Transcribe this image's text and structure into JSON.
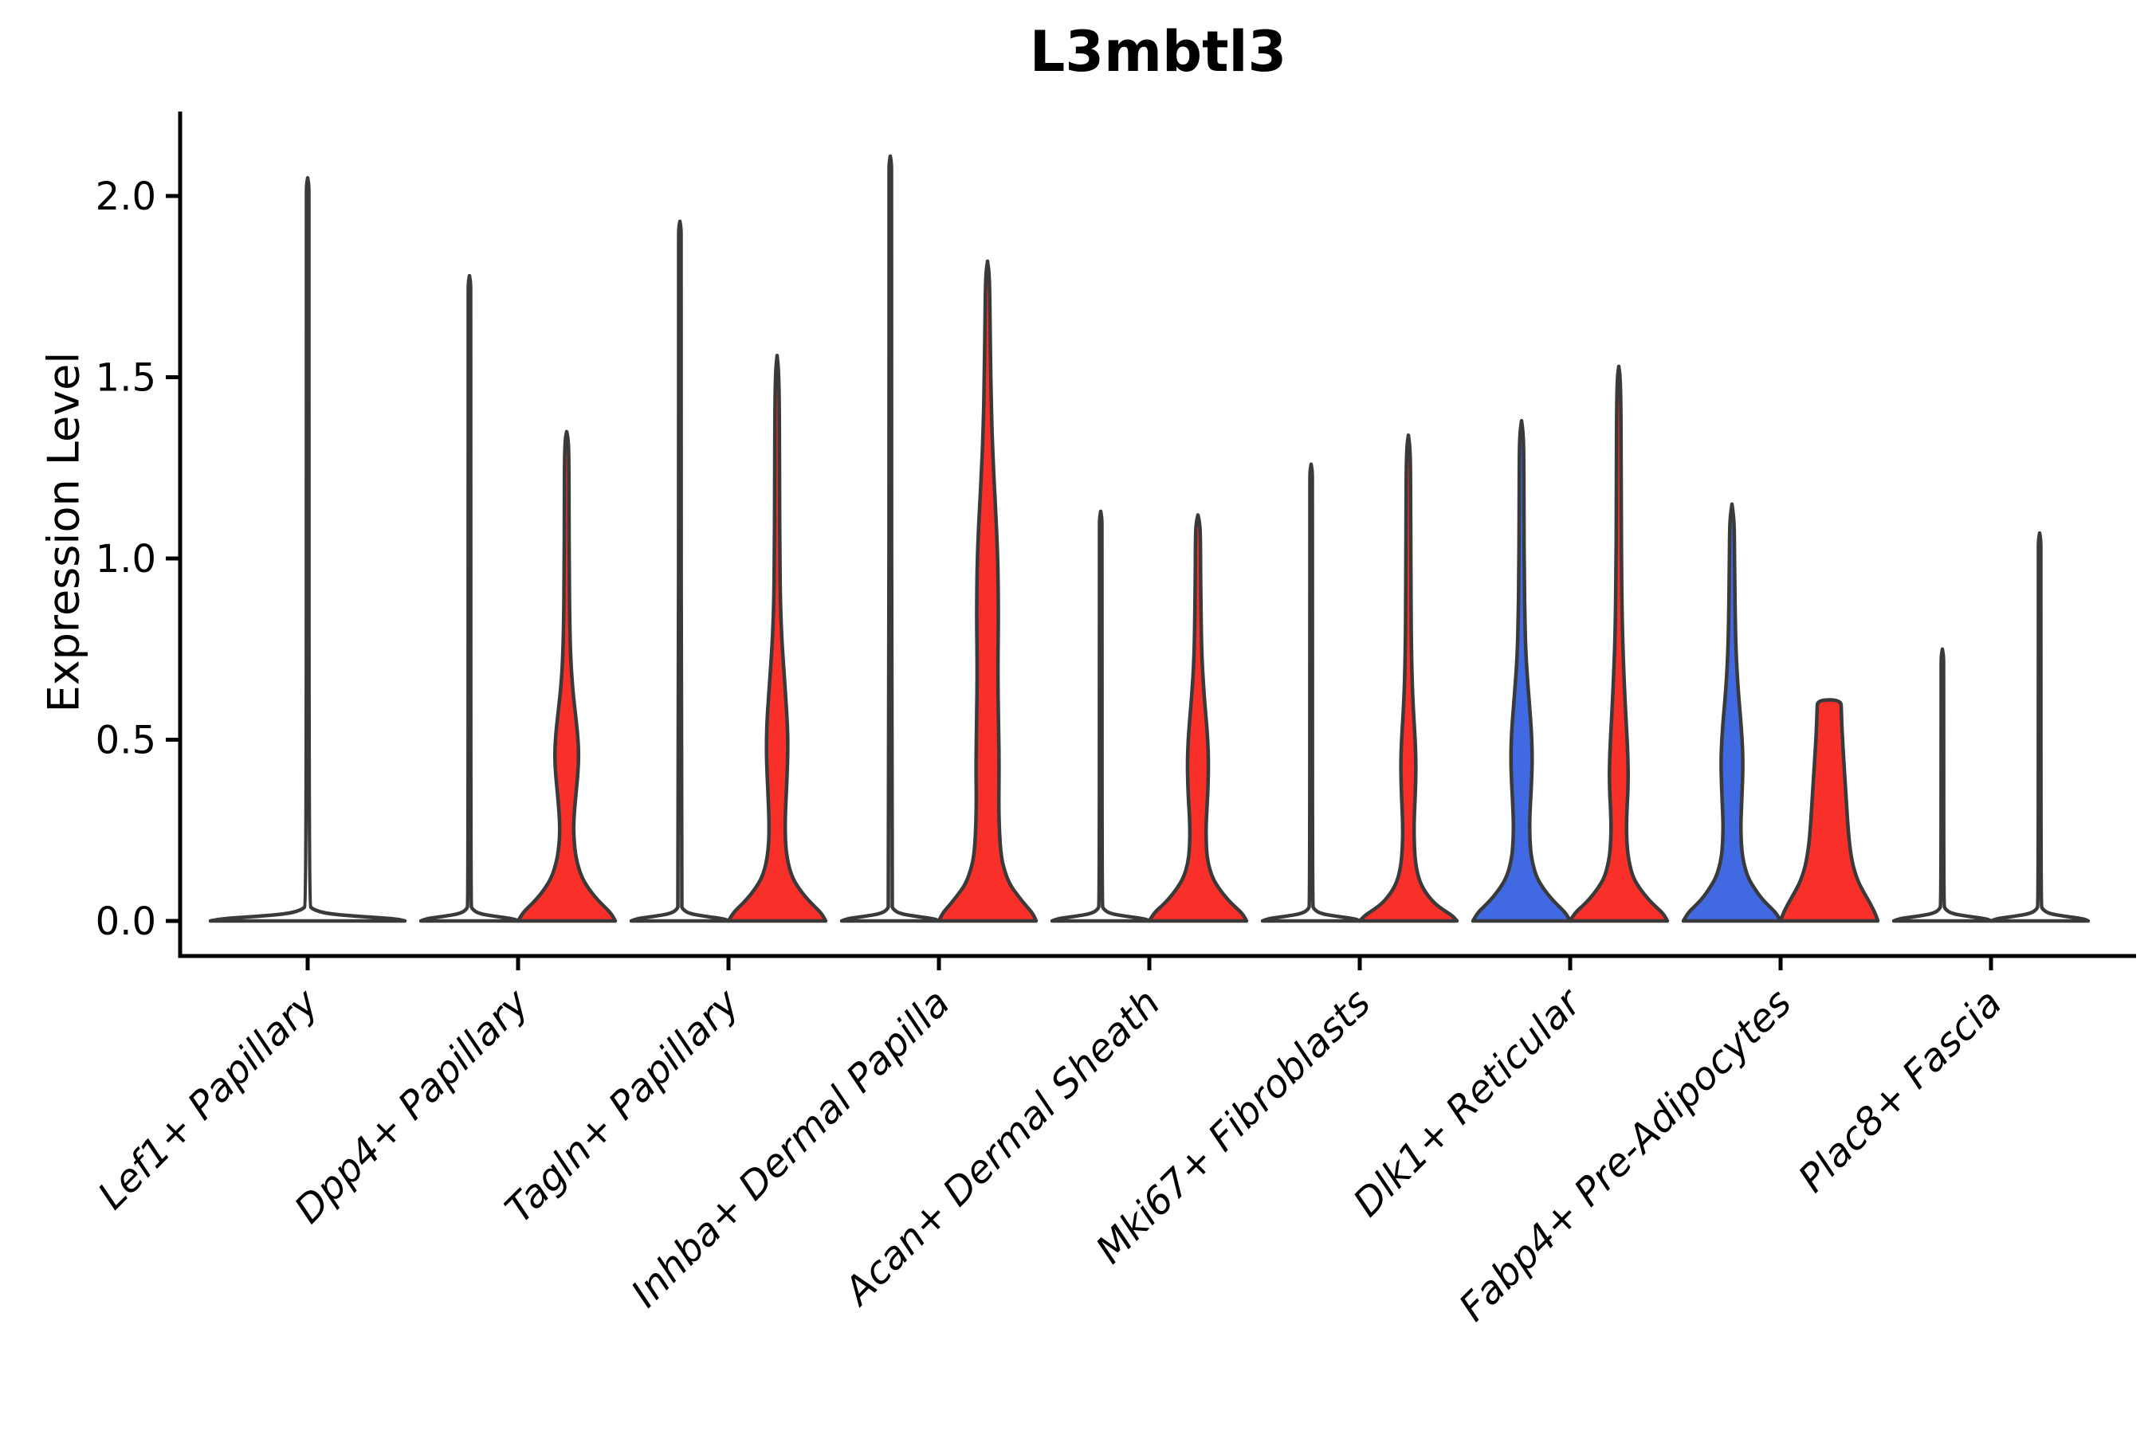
{
  "title": "L3mbtl3",
  "colors": {
    "red_fill": "#F9302A",
    "blue_fill": "#4169E1",
    "violin_outline": "#3A3A3A",
    "axis": "#000000",
    "background": "#ffffff"
  },
  "chart_data": {
    "type": "violin",
    "title": "L3mbtl3",
    "ylabel": "Expression Level",
    "xlabel": "",
    "ylim": [
      -0.09,
      2.24
    ],
    "yticks": [
      0.0,
      0.5,
      1.0,
      1.5,
      2.0
    ],
    "ytick_labels": [
      "0.0",
      "0.5",
      "1.0",
      "1.5",
      "2.0"
    ],
    "grid": false,
    "legend": "none",
    "xtick_rotation_deg": 45,
    "halfwidth_units": "px",
    "categories": [
      "Lef1+ Papillary",
      "Dpp4+ Papillary",
      "Tagln+ Papillary",
      "Inhba+ Dermal Papilla",
      "Acan+ Dermal Sheath",
      "Mki67+ Fibroblasts",
      "Dlk1+ Reticular",
      "Fabp4+ Pre-Adipocytes",
      "Plac8+ Fascia"
    ],
    "violins": [
      {
        "category_index": 0,
        "category": "Lef1+ Papillary",
        "group": "full",
        "color": "none",
        "peak": 2.05,
        "profile": [
          [
            0,
            122
          ],
          [
            0.006,
            110
          ],
          [
            0.012,
            67
          ],
          [
            0.02,
            24
          ],
          [
            0.032,
            6
          ],
          [
            0.045,
            1.6
          ],
          [
            2.0,
            1.6
          ],
          [
            2.03,
            1.4
          ],
          [
            2.05,
            0
          ]
        ]
      },
      {
        "category_index": 1,
        "category": "Dpp4+ Papillary",
        "group": "left",
        "color": "none",
        "peak": 1.78,
        "profile": [
          [
            0,
            61
          ],
          [
            0.006,
            55
          ],
          [
            0.012,
            34
          ],
          [
            0.02,
            12
          ],
          [
            0.032,
            3.5
          ],
          [
            0.045,
            1.6
          ],
          [
            1.73,
            1.6
          ],
          [
            1.76,
            1.4
          ],
          [
            1.78,
            0
          ]
        ]
      },
      {
        "category_index": 1,
        "category": "Dpp4+ Papillary",
        "group": "right",
        "color": "red",
        "peak": 1.35,
        "profile": [
          [
            0,
            61
          ],
          [
            0.02,
            56
          ],
          [
            0.04,
            47
          ],
          [
            0.06,
            38
          ],
          [
            0.09,
            27
          ],
          [
            0.12,
            19
          ],
          [
            0.16,
            13
          ],
          [
            0.2,
            10
          ],
          [
            0.25,
            8.5
          ],
          [
            0.3,
            9.5
          ],
          [
            0.36,
            12
          ],
          [
            0.42,
            14.5
          ],
          [
            0.47,
            15
          ],
          [
            0.52,
            13.5
          ],
          [
            0.58,
            10.5
          ],
          [
            0.64,
            7.5
          ],
          [
            0.72,
            5
          ],
          [
            0.82,
            3.8
          ],
          [
            0.95,
            3.2
          ],
          [
            1.15,
            2.9
          ],
          [
            1.28,
            2.7
          ],
          [
            1.33,
            1.8
          ],
          [
            1.35,
            0
          ]
        ]
      },
      {
        "category_index": 2,
        "category": "Tagln+ Papillary",
        "group": "left",
        "color": "none",
        "peak": 1.93,
        "profile": [
          [
            0,
            61
          ],
          [
            0.006,
            55
          ],
          [
            0.012,
            34
          ],
          [
            0.02,
            12
          ],
          [
            0.032,
            3.5
          ],
          [
            0.045,
            1.6
          ],
          [
            1.88,
            1.6
          ],
          [
            1.91,
            1.4
          ],
          [
            1.93,
            0
          ]
        ]
      },
      {
        "category_index": 2,
        "category": "Tagln+ Papillary",
        "group": "right",
        "color": "red",
        "peak": 1.56,
        "profile": [
          [
            0,
            61
          ],
          [
            0.02,
            56
          ],
          [
            0.04,
            47
          ],
          [
            0.06,
            38
          ],
          [
            0.09,
            27
          ],
          [
            0.12,
            19
          ],
          [
            0.16,
            13.5
          ],
          [
            0.21,
            10.5
          ],
          [
            0.27,
            10
          ],
          [
            0.33,
            11
          ],
          [
            0.4,
            12.5
          ],
          [
            0.47,
            13.5
          ],
          [
            0.54,
            13
          ],
          [
            0.61,
            11
          ],
          [
            0.69,
            8.5
          ],
          [
            0.77,
            6
          ],
          [
            0.87,
            4.2
          ],
          [
            1.0,
            3.4
          ],
          [
            1.2,
            3
          ],
          [
            1.42,
            2.8
          ],
          [
            1.52,
            1.8
          ],
          [
            1.56,
            0
          ]
        ]
      },
      {
        "category_index": 3,
        "category": "Inhba+ Dermal Papilla",
        "group": "left",
        "color": "none",
        "peak": 2.11,
        "profile": [
          [
            0,
            61
          ],
          [
            0.006,
            55
          ],
          [
            0.012,
            34
          ],
          [
            0.02,
            12
          ],
          [
            0.032,
            3.5
          ],
          [
            0.045,
            1.6
          ],
          [
            2.06,
            1.6
          ],
          [
            2.09,
            1.4
          ],
          [
            2.11,
            0
          ]
        ]
      },
      {
        "category_index": 3,
        "category": "Inhba+ Dermal Papilla",
        "group": "right",
        "color": "red",
        "peak": 1.82,
        "profile": [
          [
            0,
            61
          ],
          [
            0.02,
            57
          ],
          [
            0.04,
            49
          ],
          [
            0.07,
            38
          ],
          [
            0.1,
            28
          ],
          [
            0.14,
            21
          ],
          [
            0.18,
            17
          ],
          [
            0.24,
            15
          ],
          [
            0.32,
            14
          ],
          [
            0.42,
            14.5
          ],
          [
            0.52,
            14
          ],
          [
            0.62,
            13.2
          ],
          [
            0.72,
            13
          ],
          [
            0.82,
            13.6
          ],
          [
            0.92,
            13.4
          ],
          [
            1.02,
            12.5
          ],
          [
            1.12,
            10.5
          ],
          [
            1.22,
            8
          ],
          [
            1.35,
            5.5
          ],
          [
            1.5,
            4
          ],
          [
            1.65,
            3.2
          ],
          [
            1.78,
            2.4
          ],
          [
            1.82,
            0
          ]
        ]
      },
      {
        "category_index": 4,
        "category": "Acan+ Dermal Sheath",
        "group": "left",
        "color": "none",
        "peak": 1.13,
        "profile": [
          [
            0,
            61
          ],
          [
            0.006,
            55
          ],
          [
            0.012,
            34
          ],
          [
            0.02,
            12
          ],
          [
            0.032,
            3.5
          ],
          [
            0.045,
            1.6
          ],
          [
            1.08,
            1.6
          ],
          [
            1.11,
            1.4
          ],
          [
            1.13,
            0
          ]
        ]
      },
      {
        "category_index": 4,
        "category": "Acan+ Dermal Sheath",
        "group": "right",
        "color": "red",
        "peak": 1.12,
        "profile": [
          [
            0,
            61
          ],
          [
            0.02,
            56
          ],
          [
            0.04,
            46
          ],
          [
            0.06,
            37
          ],
          [
            0.09,
            26
          ],
          [
            0.12,
            18
          ],
          [
            0.16,
            12.5
          ],
          [
            0.2,
            10.5
          ],
          [
            0.26,
            10
          ],
          [
            0.32,
            11.5
          ],
          [
            0.38,
            12.8
          ],
          [
            0.44,
            13.2
          ],
          [
            0.5,
            12.3
          ],
          [
            0.56,
            10.2
          ],
          [
            0.63,
            7.5
          ],
          [
            0.72,
            5
          ],
          [
            0.82,
            4
          ],
          [
            0.95,
            3.3
          ],
          [
            1.07,
            3
          ],
          [
            1.1,
            2
          ],
          [
            1.12,
            0
          ]
        ]
      },
      {
        "category_index": 5,
        "category": "Mki67+ Fibroblasts",
        "group": "left",
        "color": "none",
        "peak": 1.26,
        "profile": [
          [
            0,
            61
          ],
          [
            0.006,
            55
          ],
          [
            0.012,
            34
          ],
          [
            0.02,
            12
          ],
          [
            0.032,
            3.5
          ],
          [
            0.045,
            1.6
          ],
          [
            1.21,
            1.6
          ],
          [
            1.24,
            1.4
          ],
          [
            1.26,
            0
          ]
        ]
      },
      {
        "category_index": 5,
        "category": "Mki67+ Fibroblasts",
        "group": "right",
        "color": "red",
        "peak": 1.34,
        "profile": [
          [
            0,
            61
          ],
          [
            0.015,
            55
          ],
          [
            0.03,
            44
          ],
          [
            0.05,
            32
          ],
          [
            0.08,
            21
          ],
          [
            0.11,
            14
          ],
          [
            0.15,
            9.5
          ],
          [
            0.2,
            7.5
          ],
          [
            0.26,
            7
          ],
          [
            0.32,
            8
          ],
          [
            0.38,
            9.2
          ],
          [
            0.44,
            9.5
          ],
          [
            0.5,
            8.5
          ],
          [
            0.56,
            6.8
          ],
          [
            0.64,
            5
          ],
          [
            0.75,
            3.8
          ],
          [
            0.9,
            3.2
          ],
          [
            1.1,
            2.9
          ],
          [
            1.25,
            2.7
          ],
          [
            1.31,
            1.8
          ],
          [
            1.34,
            0
          ]
        ]
      },
      {
        "category_index": 6,
        "category": "Dlk1+ Reticular",
        "group": "left",
        "color": "blue",
        "peak": 1.38,
        "profile": [
          [
            0,
            61
          ],
          [
            0.02,
            56
          ],
          [
            0.04,
            47
          ],
          [
            0.06,
            38
          ],
          [
            0.09,
            27
          ],
          [
            0.12,
            19
          ],
          [
            0.16,
            13.5
          ],
          [
            0.2,
            11
          ],
          [
            0.26,
            10
          ],
          [
            0.32,
            11
          ],
          [
            0.38,
            12.5
          ],
          [
            0.45,
            13.5
          ],
          [
            0.52,
            12.5
          ],
          [
            0.58,
            10.5
          ],
          [
            0.65,
            8
          ],
          [
            0.73,
            5.5
          ],
          [
            0.83,
            4.2
          ],
          [
            0.95,
            3.4
          ],
          [
            1.1,
            3
          ],
          [
            1.3,
            2.8
          ],
          [
            1.35,
            1.8
          ],
          [
            1.38,
            0
          ]
        ]
      },
      {
        "category_index": 6,
        "category": "Dlk1+ Reticular",
        "group": "right",
        "color": "red",
        "peak": 1.53,
        "profile": [
          [
            0,
            61
          ],
          [
            0.02,
            56
          ],
          [
            0.04,
            46
          ],
          [
            0.06,
            37
          ],
          [
            0.09,
            26
          ],
          [
            0.12,
            18
          ],
          [
            0.16,
            13
          ],
          [
            0.2,
            10.5
          ],
          [
            0.26,
            9.5
          ],
          [
            0.32,
            10.5
          ],
          [
            0.38,
            11.8
          ],
          [
            0.45,
            11.5
          ],
          [
            0.52,
            10
          ],
          [
            0.6,
            8
          ],
          [
            0.7,
            6
          ],
          [
            0.8,
            4.5
          ],
          [
            0.95,
            3.5
          ],
          [
            1.15,
            3
          ],
          [
            1.4,
            2.8
          ],
          [
            1.5,
            1.8
          ],
          [
            1.53,
            0
          ]
        ]
      },
      {
        "category_index": 7,
        "category": "Fabp4+ Pre-Adipocytes",
        "group": "left",
        "color": "blue",
        "peak": 1.15,
        "profile": [
          [
            0,
            61
          ],
          [
            0.02,
            56
          ],
          [
            0.04,
            47
          ],
          [
            0.06,
            38
          ],
          [
            0.09,
            28
          ],
          [
            0.12,
            20
          ],
          [
            0.16,
            14.5
          ],
          [
            0.2,
            12
          ],
          [
            0.26,
            11
          ],
          [
            0.32,
            12
          ],
          [
            0.38,
            13.2
          ],
          [
            0.44,
            13.8
          ],
          [
            0.5,
            12.8
          ],
          [
            0.56,
            10.8
          ],
          [
            0.63,
            8
          ],
          [
            0.72,
            5.5
          ],
          [
            0.82,
            4.2
          ],
          [
            0.95,
            3.4
          ],
          [
            1.06,
            3
          ],
          [
            1.11,
            2.4
          ],
          [
            1.15,
            0
          ]
        ]
      },
      {
        "category_index": 7,
        "category": "Fabp4+ Pre-Adipocytes",
        "group": "right",
        "color": "red",
        "peak": 0.61,
        "profile": [
          [
            0,
            61
          ],
          [
            0.02,
            58
          ],
          [
            0.05,
            51
          ],
          [
            0.08,
            43
          ],
          [
            0.11,
            36
          ],
          [
            0.15,
            30
          ],
          [
            0.2,
            26
          ],
          [
            0.26,
            23.5
          ],
          [
            0.33,
            21.5
          ],
          [
            0.4,
            19.5
          ],
          [
            0.47,
            17.5
          ],
          [
            0.53,
            16
          ],
          [
            0.58,
            15.2
          ],
          [
            0.61,
            14.8
          ]
        ]
      },
      {
        "category_index": 8,
        "category": "Plac8+ Fascia",
        "group": "left",
        "color": "none",
        "peak": 0.75,
        "profile": [
          [
            0,
            61
          ],
          [
            0.006,
            55
          ],
          [
            0.012,
            34
          ],
          [
            0.02,
            12
          ],
          [
            0.032,
            3.5
          ],
          [
            0.045,
            1.6
          ],
          [
            0.7,
            1.6
          ],
          [
            0.73,
            1.4
          ],
          [
            0.75,
            0
          ]
        ]
      },
      {
        "category_index": 8,
        "category": "Plac8+ Fascia",
        "group": "right",
        "color": "none",
        "peak": 1.07,
        "profile": [
          [
            0,
            61
          ],
          [
            0.006,
            55
          ],
          [
            0.012,
            34
          ],
          [
            0.02,
            12
          ],
          [
            0.032,
            3.5
          ],
          [
            0.045,
            1.6
          ],
          [
            1.02,
            1.6
          ],
          [
            1.05,
            1.4
          ],
          [
            1.07,
            0
          ]
        ]
      }
    ]
  }
}
